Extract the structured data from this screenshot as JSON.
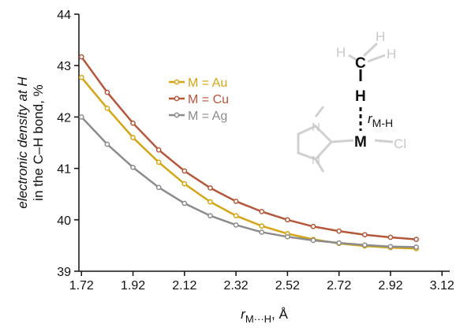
{
  "chart_data": {
    "type": "line",
    "y_label": [
      "electronic density at H",
      "in the C–H bond, %"
    ],
    "x_label": {
      "symbol": "r",
      "subscript": "M···H",
      "unit": ", Å"
    },
    "x": [
      1.72,
      1.82,
      1.92,
      2.02,
      2.12,
      2.22,
      2.32,
      2.42,
      2.52,
      2.62,
      2.72,
      2.82,
      2.92,
      3.02
    ],
    "series": [
      {
        "name": "M = Au",
        "color": "#d4a514",
        "values": [
          42.77,
          42.17,
          41.6,
          41.12,
          40.7,
          40.35,
          40.08,
          39.88,
          39.73,
          39.62,
          39.54,
          39.49,
          39.46,
          39.44
        ]
      },
      {
        "name": "M = Cu",
        "color": "#b5573a",
        "values": [
          43.17,
          42.48,
          41.88,
          41.36,
          40.95,
          40.62,
          40.36,
          40.16,
          40.0,
          39.87,
          39.78,
          39.71,
          39.66,
          39.62
        ]
      },
      {
        "name": "M = Ag",
        "color": "#8c8c8c",
        "values": [
          42.0,
          41.47,
          41.02,
          40.63,
          40.32,
          40.08,
          39.9,
          39.76,
          39.67,
          39.6,
          39.55,
          39.51,
          39.48,
          39.47
        ]
      }
    ],
    "xlim": [
      1.71,
      3.15
    ],
    "xticks": [
      1.72,
      1.92,
      2.12,
      2.32,
      2.52,
      2.72,
      2.92,
      3.12
    ],
    "ylim": [
      39,
      44
    ],
    "yticks": [
      39,
      40,
      41,
      42,
      43,
      44
    ],
    "annotations": {
      "atoms": [
        "C",
        "H",
        "H",
        "H",
        "H",
        "M",
        "Cl",
        "N",
        "N"
      ],
      "distance": {
        "symbol": "r",
        "subscript": "M-H"
      }
    }
  }
}
